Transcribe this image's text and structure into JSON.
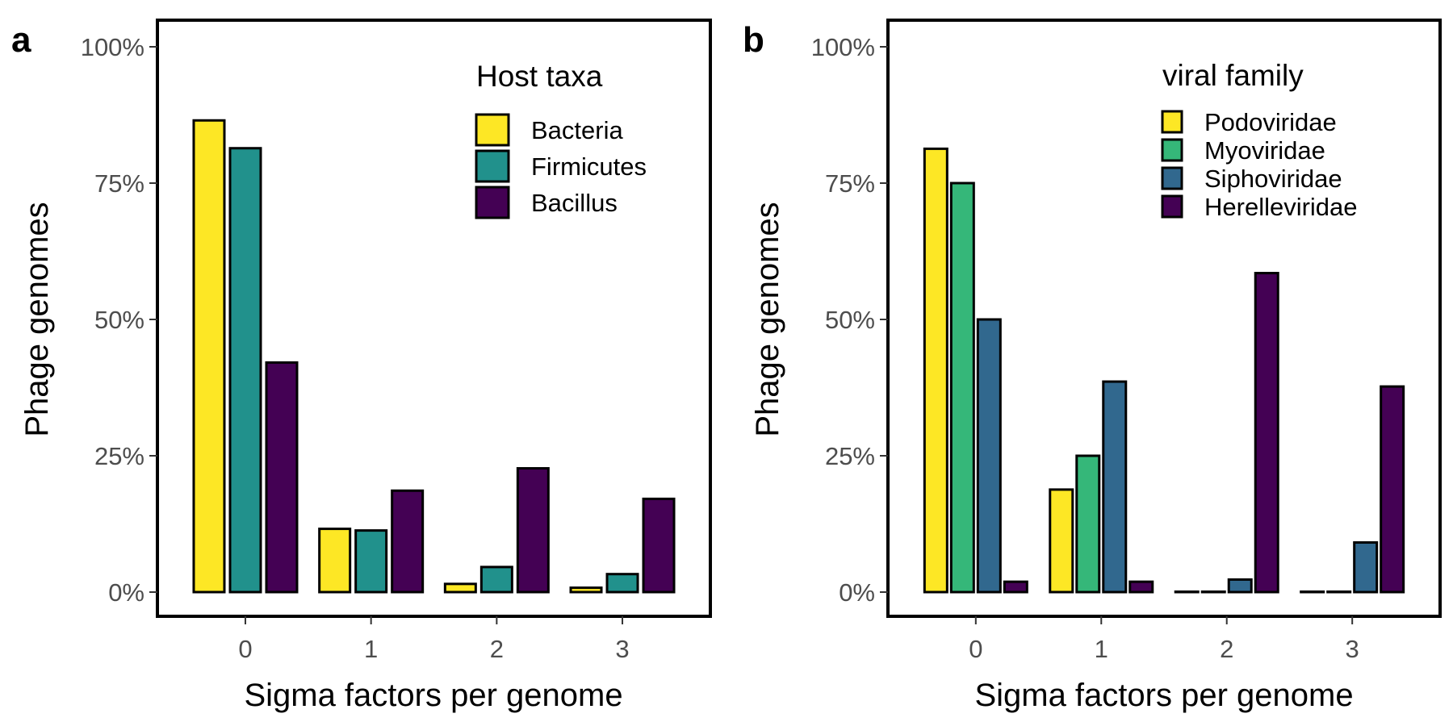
{
  "chart_data": [
    {
      "type": "bar",
      "panel_label": "a",
      "categories": [
        "0",
        "1",
        "2",
        "3"
      ],
      "xlabel": "Sigma factors per genome",
      "ylabel": "Phage genomes",
      "ylim": [
        0,
        100
      ],
      "yticks": [
        0,
        25,
        50,
        75,
        100
      ],
      "ytick_labels": [
        "0%",
        "25%",
        "50%",
        "75%",
        "100%"
      ],
      "grid": false,
      "legend": {
        "title": "Host taxa",
        "placement": "top-right"
      },
      "series": [
        {
          "name": "Bacteria",
          "color": "#FDE725",
          "values": [
            86.5,
            11.6,
            1.5,
            0.8
          ]
        },
        {
          "name": "Firmicutes",
          "color": "#21918C",
          "values": [
            81.4,
            11.3,
            4.6,
            3.3
          ]
        },
        {
          "name": "Bacillus",
          "color": "#440154",
          "values": [
            42.1,
            18.6,
            22.7,
            17.1
          ]
        }
      ]
    },
    {
      "type": "bar",
      "panel_label": "b",
      "categories": [
        "0",
        "1",
        "2",
        "3"
      ],
      "xlabel": "Sigma factors per genome",
      "ylabel": "Phage genomes",
      "ylim": [
        0,
        100
      ],
      "yticks": [
        0,
        25,
        50,
        75,
        100
      ],
      "ytick_labels": [
        "0%",
        "25%",
        "50%",
        "75%",
        "100%"
      ],
      "grid": false,
      "legend": {
        "title": "viral family",
        "placement": "top-right"
      },
      "series": [
        {
          "name": "Podoviridae",
          "color": "#FDE725",
          "values": [
            81.3,
            18.8,
            0,
            0
          ]
        },
        {
          "name": "Myoviridae",
          "color": "#35B779",
          "values": [
            75.0,
            25.0,
            0,
            0
          ]
        },
        {
          "name": "Siphoviridae",
          "color": "#31688E",
          "values": [
            50.0,
            38.6,
            2.3,
            9.1
          ]
        },
        {
          "name": "Herelleviridae",
          "color": "#440154",
          "values": [
            1.9,
            1.9,
            58.5,
            37.7
          ]
        }
      ]
    }
  ]
}
